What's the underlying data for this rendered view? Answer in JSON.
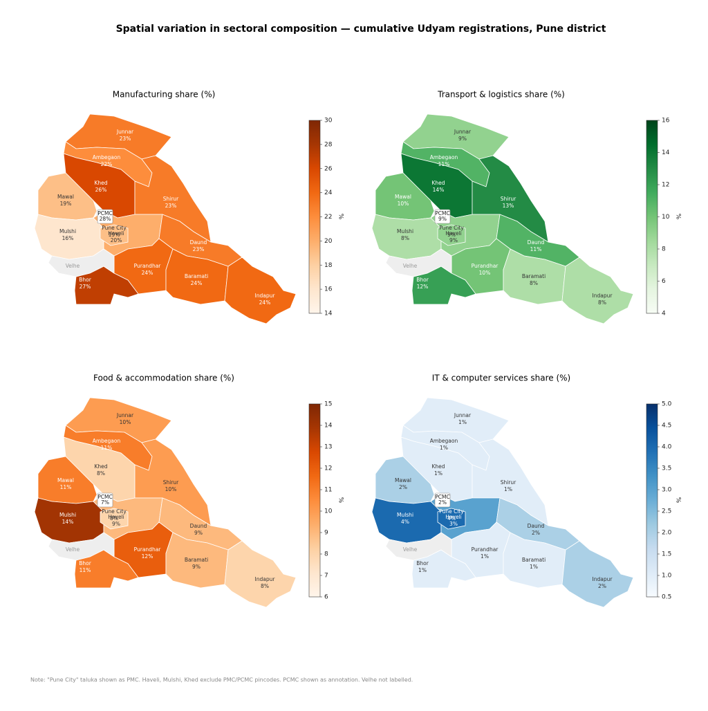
{
  "title": "Spatial variation in sectoral composition — cumulative Udyam registrations, Pune district",
  "note": "Note: \"Pune City\" taluka shown as PMC. Haveli, Mulshi, Khed exclude PMC/PCMC pincodes. PCMC shown as annotation. Velhe not labelled.",
  "chart_data": [
    {
      "type": "map",
      "title": "Manufacturing share (%)",
      "colormap": "Oranges",
      "colorbar_label": "%",
      "clim": [
        14,
        30
      ],
      "cticks": [
        14,
        16,
        18,
        20,
        22,
        24,
        26,
        28,
        30
      ],
      "regions": [
        "Junnar",
        "Ambegaon",
        "Khed",
        "Mawal",
        "Shirur",
        "Mulshi",
        "Haveli",
        "Pune City",
        "Daund",
        "Purandhar",
        "Baramati",
        "Indapur",
        "Bhor",
        "Velhe",
        "PCMC"
      ],
      "values": [
        23,
        22,
        26,
        19,
        23,
        16,
        20,
        19,
        23,
        24,
        24,
        24,
        27,
        null,
        28
      ],
      "value_labels": [
        "23%",
        "22%",
        "26%",
        "19%",
        "23%",
        "16%",
        "20%",
        "19%",
        "23%",
        "24%",
        "24%",
        "24%",
        "27%",
        null,
        "28%"
      ]
    },
    {
      "type": "map",
      "title": "Transport & logistics share (%)",
      "colormap": "Greens",
      "colorbar_label": "%",
      "clim": [
        4,
        16
      ],
      "cticks": [
        4,
        6,
        8,
        10,
        12,
        14,
        16
      ],
      "regions": [
        "Junnar",
        "Ambegaon",
        "Khed",
        "Mawal",
        "Shirur",
        "Mulshi",
        "Haveli",
        "Pune City",
        "Daund",
        "Purandhar",
        "Baramati",
        "Indapur",
        "Bhor",
        "Velhe",
        "PCMC"
      ],
      "values": [
        9,
        11,
        14,
        10,
        13,
        8,
        9,
        9,
        11,
        10,
        8,
        8,
        12,
        null,
        9
      ],
      "value_labels": [
        "9%",
        "11%",
        "14%",
        "10%",
        "13%",
        "8%",
        "9%",
        "9%",
        "11%",
        "10%",
        "8%",
        "8%",
        "12%",
        null,
        "9%"
      ]
    },
    {
      "type": "map",
      "title": "Food & accommodation share (%)",
      "colormap": "Oranges",
      "colorbar_label": "%",
      "clim": [
        6,
        15
      ],
      "cticks": [
        6,
        7,
        8,
        9,
        10,
        11,
        12,
        13,
        14,
        15
      ],
      "regions": [
        "Junnar",
        "Ambegaon",
        "Khed",
        "Mawal",
        "Shirur",
        "Mulshi",
        "Haveli",
        "Pune City",
        "Daund",
        "Purandhar",
        "Baramati",
        "Indapur",
        "Bhor",
        "Velhe",
        "PCMC"
      ],
      "values": [
        10,
        11,
        8,
        11,
        10,
        14,
        9,
        8,
        9,
        12,
        9,
        8,
        11,
        null,
        7
      ],
      "value_labels": [
        "10%",
        "11%",
        "8%",
        "11%",
        "10%",
        "14%",
        "9%",
        "8%",
        "9%",
        "12%",
        "9%",
        "8%",
        "11%",
        null,
        "7%"
      ]
    },
    {
      "type": "map",
      "title": "IT & computer services share (%)",
      "colormap": "Blues",
      "colorbar_label": "%",
      "clim": [
        0.5,
        5
      ],
      "cticks": [
        0.5,
        {
          "value": 1,
          "label": "1.0"
        },
        1.5,
        {
          "value": 2,
          "label": "2.0"
        },
        2.5,
        {
          "value": 3,
          "label": "3.0"
        },
        3.5,
        {
          "value": 4,
          "label": "4.0"
        },
        4.5,
        {
          "value": 5,
          "label": "5.0"
        }
      ],
      "regions": [
        "Junnar",
        "Ambegaon",
        "Khed",
        "Mawal",
        "Shirur",
        "Mulshi",
        "Haveli",
        "Pune City",
        "Daund",
        "Purandhar",
        "Baramati",
        "Indapur",
        "Bhor",
        "Velhe",
        "PCMC"
      ],
      "values": [
        1,
        1,
        1,
        2,
        1,
        4,
        3,
        4,
        2,
        1,
        1,
        2,
        1,
        null,
        2
      ],
      "value_labels": [
        "1%",
        "1%",
        "1%",
        "2%",
        "1%",
        "4%",
        "3%",
        "4%",
        "2%",
        "1%",
        "1%",
        "2%",
        "1%",
        null,
        "2%"
      ]
    }
  ]
}
